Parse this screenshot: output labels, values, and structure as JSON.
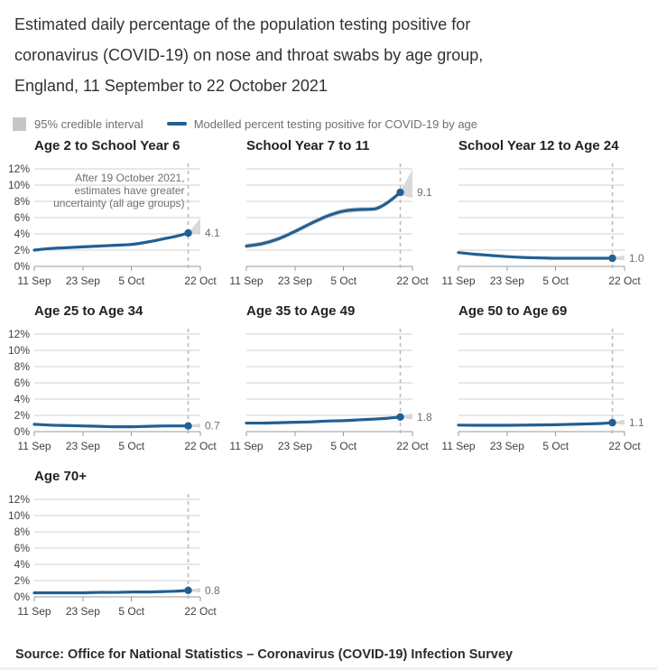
{
  "page": {
    "title_lines": [
      "Estimated daily percentage of the population testing positive for",
      "coronavirus (COVID-19) on nose and throat swabs by age group,",
      "England, 11 September to 22 October 2021"
    ],
    "source": "Source: Office for National Statistics – Coronavirus (COVID-19) Infection Survey"
  },
  "legend": {
    "ci_label": "95% credible interval",
    "line_label": "Modelled percent testing positive for COVID-19 by age"
  },
  "colors": {
    "line": "#206095",
    "band": "#d9d9d9",
    "grid": "#d2d2d2",
    "axis": "#999999",
    "tick": "#999999",
    "dashed": "#b8b8b8",
    "axis_text": "#414042",
    "gray_text": "#6f6f6f",
    "title_text": "#222222"
  },
  "chart_data": {
    "type": "line",
    "title": "Estimated daily percentage of the population testing positive for coronavirus (COVID-19) on nose and throat swabs by age group, England, 11 September to 22 October 2021",
    "xlabel": "",
    "ylabel": "Percent testing positive",
    "ylim": [
      0,
      12
    ],
    "x_domain_days": [
      0,
      41
    ],
    "x_days": [
      0,
      4,
      8,
      12,
      16,
      20,
      24,
      28,
      32,
      35,
      38
    ],
    "x_ticks": [
      {
        "d": 0,
        "label": "11 Sep"
      },
      {
        "d": 12,
        "label": "23 Sep"
      },
      {
        "d": 24,
        "label": "5 Oct"
      },
      {
        "d": 41,
        "label": "22 Oct"
      }
    ],
    "y_ticks": [
      {
        "v": 0,
        "label": "0%"
      },
      {
        "v": 2,
        "label": "2%"
      },
      {
        "v": 4,
        "label": "4%"
      },
      {
        "v": 6,
        "label": "6%"
      },
      {
        "v": 8,
        "label": "8%"
      },
      {
        "v": 10,
        "label": "10%"
      },
      {
        "v": 12,
        "label": "12%"
      }
    ],
    "dashed_line_day": 38,
    "annotation_lines": [
      "After 19 October 2021,",
      "estimates have greater",
      "uncertainty (all age groups)"
    ],
    "series": [
      {
        "name": "Age 2 to School Year 6",
        "slug": "age-2-to-school-year-6",
        "show_y_labels": true,
        "show_annotation": true,
        "values": [
          2.0,
          2.2,
          2.3,
          2.4,
          2.5,
          2.6,
          2.7,
          3.0,
          3.4,
          3.7,
          4.1
        ],
        "ci_halfwidth": 0.18,
        "tail": {
          "day": 41,
          "upper": 5.9,
          "lower": 4.0
        },
        "end_value": 4.1,
        "end_label": "4.1"
      },
      {
        "name": "School Year 7 to 11",
        "slug": "school-year-7-to-11",
        "show_y_labels": false,
        "show_annotation": false,
        "values": [
          2.5,
          2.8,
          3.4,
          4.3,
          5.3,
          6.2,
          6.8,
          7.0,
          7.1,
          7.9,
          9.1
        ],
        "ci_halfwidth": 0.3,
        "tail": {
          "day": 41,
          "upper": 11.9,
          "lower": 8.4
        },
        "end_value": 9.1,
        "end_label": "9.1"
      },
      {
        "name": "School Year 12 to Age 24",
        "slug": "school-year-12-to-age-24",
        "show_y_labels": false,
        "show_annotation": false,
        "values": [
          1.7,
          1.5,
          1.35,
          1.2,
          1.1,
          1.05,
          1.0,
          1.0,
          1.0,
          1.0,
          1.0
        ],
        "ci_halfwidth": 0.14,
        "tail": {
          "day": 41,
          "upper": 1.35,
          "lower": 0.75
        },
        "end_value": 1.0,
        "end_label": "1.0"
      },
      {
        "name": "Age 25 to Age 34",
        "slug": "age-25-to-age-34",
        "show_y_labels": true,
        "show_annotation": false,
        "values": [
          0.9,
          0.8,
          0.75,
          0.7,
          0.65,
          0.6,
          0.6,
          0.65,
          0.7,
          0.7,
          0.7
        ],
        "ci_halfwidth": 0.12,
        "tail": {
          "day": 41,
          "upper": 1.0,
          "lower": 0.5
        },
        "end_value": 0.7,
        "end_label": "0.7"
      },
      {
        "name": "Age 35 to Age 49",
        "slug": "age-35-to-age-49",
        "show_y_labels": false,
        "show_annotation": false,
        "values": [
          1.05,
          1.05,
          1.1,
          1.15,
          1.2,
          1.3,
          1.35,
          1.45,
          1.55,
          1.65,
          1.8
        ],
        "ci_halfwidth": 0.12,
        "tail": {
          "day": 41,
          "upper": 2.25,
          "lower": 1.5
        },
        "end_value": 1.8,
        "end_label": "1.8"
      },
      {
        "name": "Age 50 to Age 69",
        "slug": "age-50-to-age-69",
        "show_y_labels": false,
        "show_annotation": false,
        "values": [
          0.8,
          0.78,
          0.78,
          0.78,
          0.8,
          0.82,
          0.85,
          0.9,
          0.95,
          1.0,
          1.1
        ],
        "ci_halfwidth": 0.1,
        "tail": {
          "day": 41,
          "upper": 1.45,
          "lower": 0.85
        },
        "end_value": 1.1,
        "end_label": "1.1"
      },
      {
        "name": "Age 70+",
        "slug": "age-70-plus",
        "show_y_labels": true,
        "show_annotation": false,
        "values": [
          0.5,
          0.5,
          0.5,
          0.5,
          0.55,
          0.55,
          0.6,
          0.6,
          0.65,
          0.7,
          0.8
        ],
        "ci_halfwidth": 0.1,
        "tail": {
          "day": 41,
          "upper": 1.1,
          "lower": 0.55
        },
        "end_value": 0.8,
        "end_label": "0.8"
      }
    ]
  }
}
